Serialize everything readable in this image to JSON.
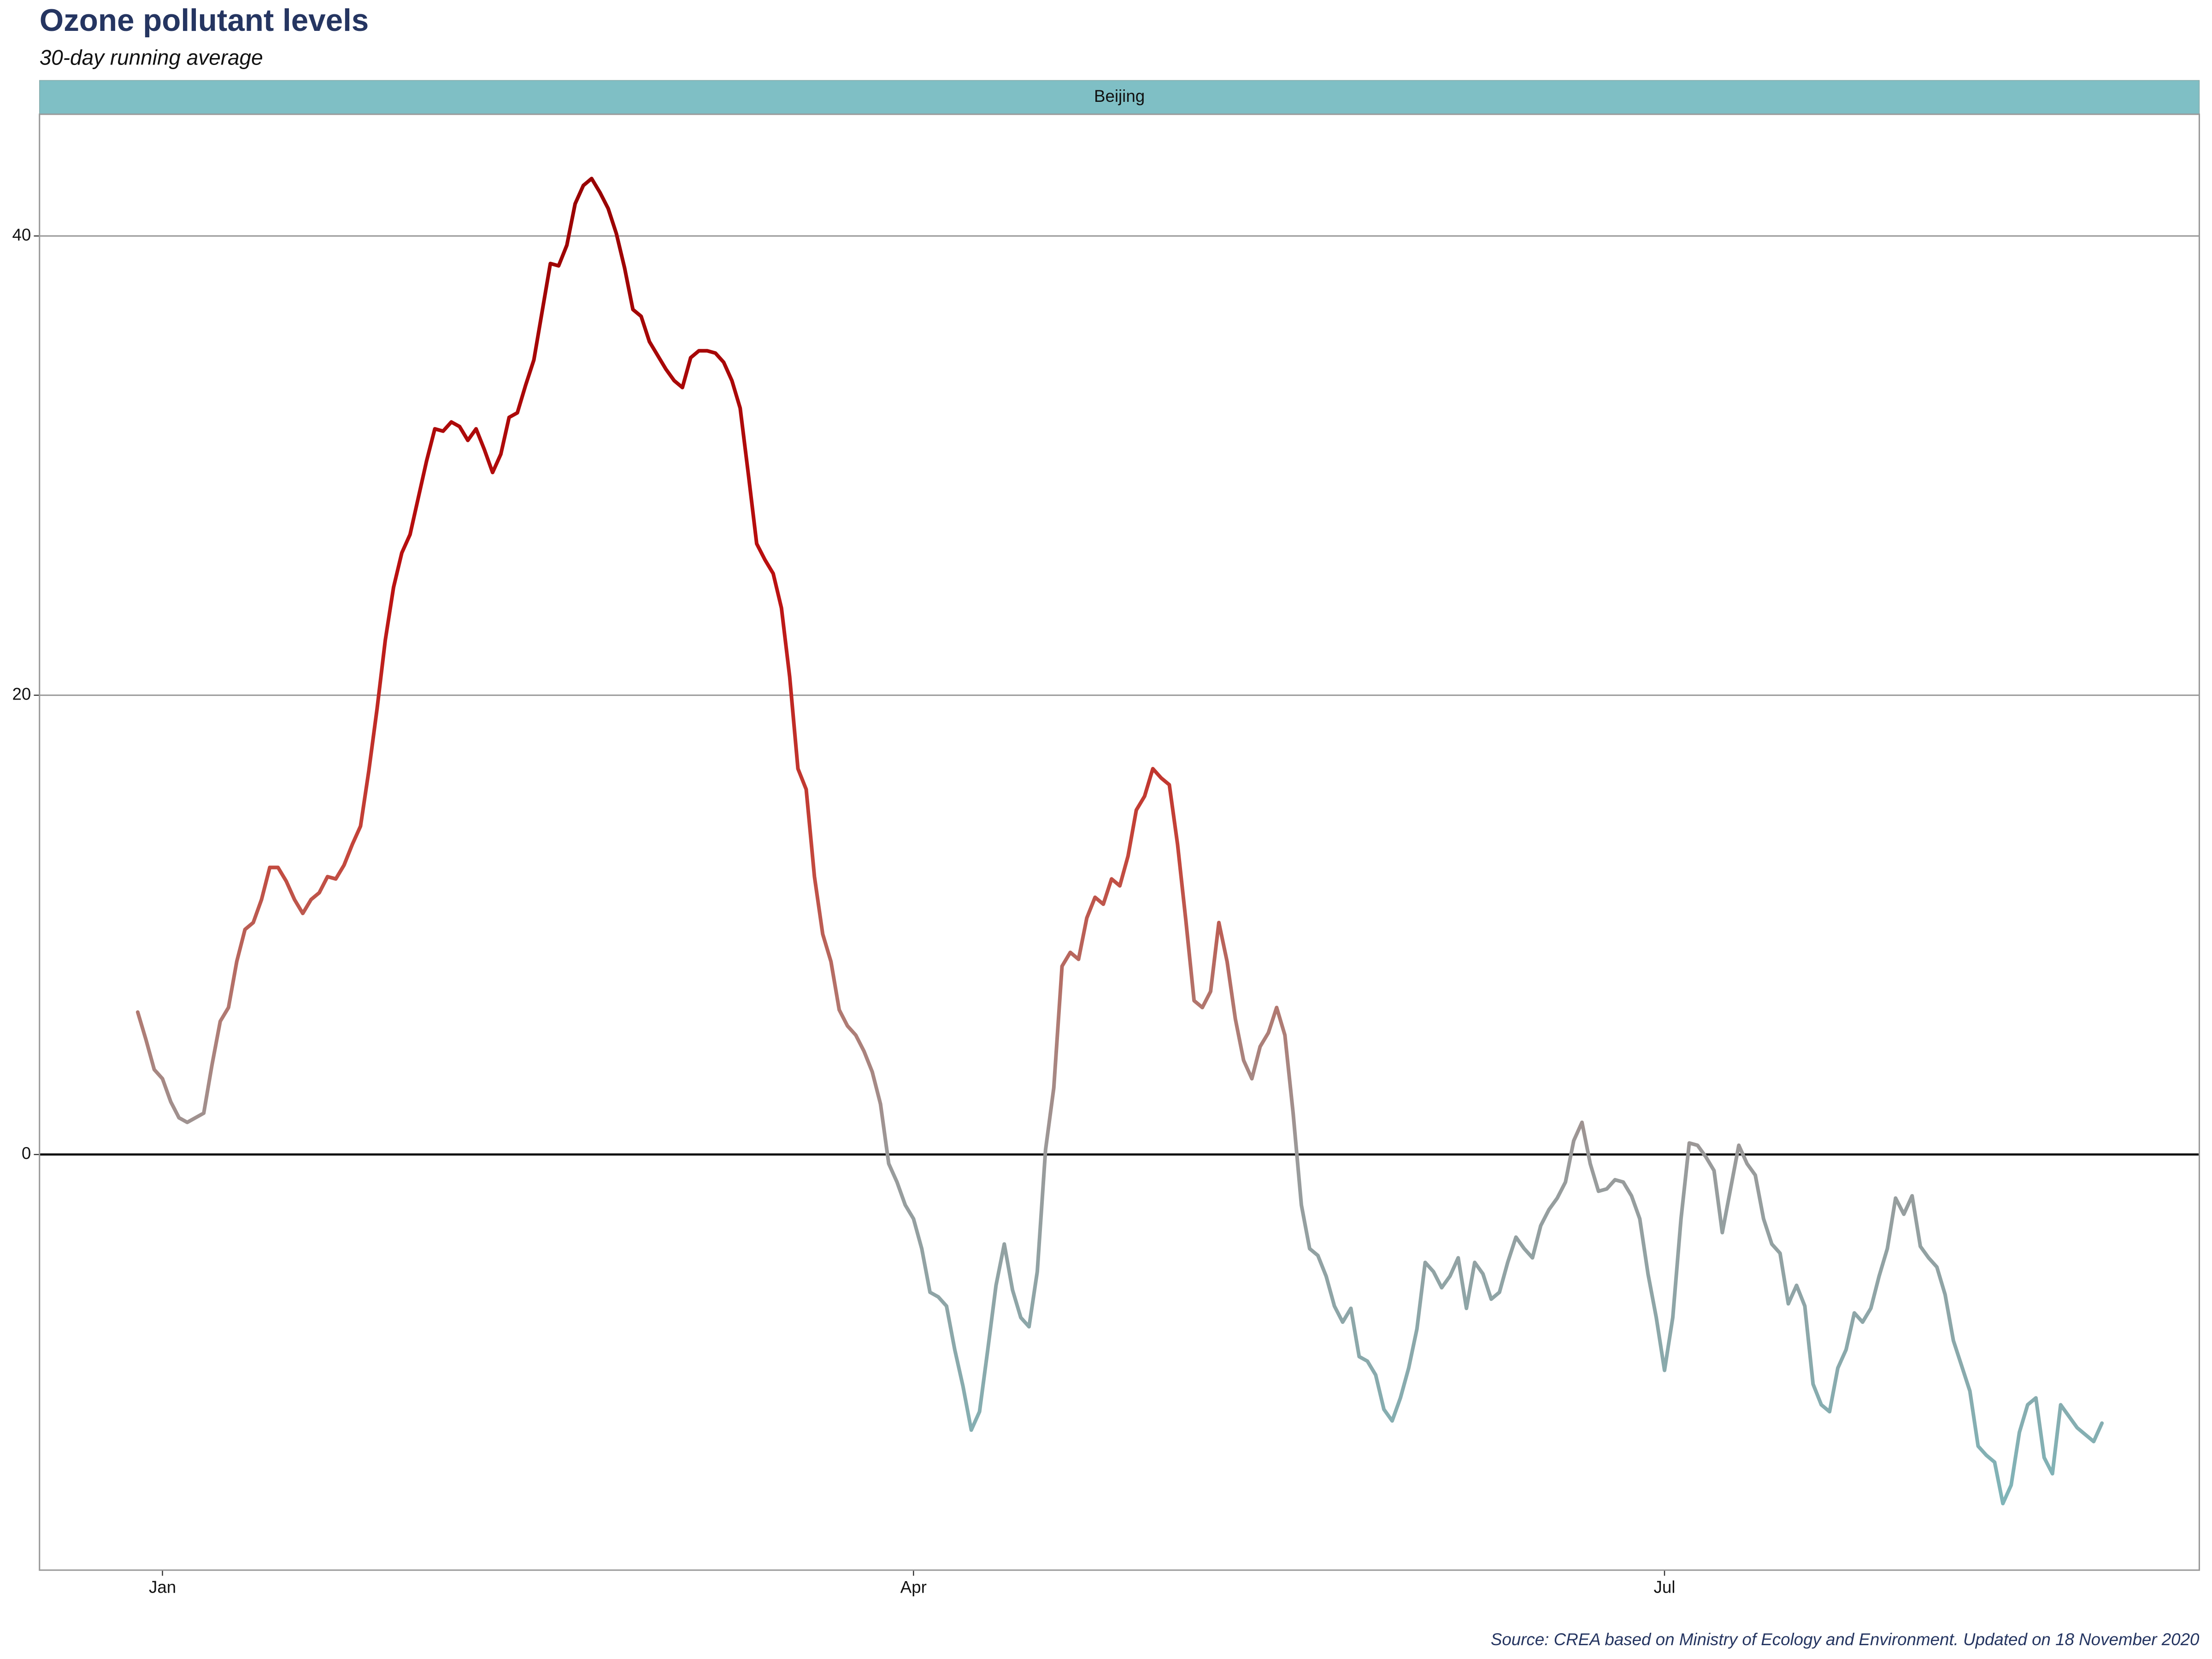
{
  "chart_data": {
    "type": "line",
    "title": "Ozone pollutant levels",
    "subtitle": "30-day running average",
    "panel_label": "Beijing",
    "source": "Source: CREA based on Ministry of Ecology and Environment. Updated on 18 November 2020",
    "x": [
      -3,
      -2,
      -1,
      0,
      1,
      2,
      3,
      4,
      5,
      6,
      7,
      8,
      9,
      10,
      11,
      12,
      13,
      14,
      15,
      16,
      17,
      18,
      19,
      20,
      21,
      22,
      23,
      24,
      25,
      26,
      27,
      28,
      29,
      30,
      31,
      32,
      33,
      34,
      35,
      36,
      37,
      38,
      39,
      40,
      41,
      42,
      43,
      44,
      45,
      46,
      47,
      48,
      49,
      50,
      51,
      52,
      53,
      54,
      55,
      56,
      57,
      58,
      59,
      60,
      61,
      62,
      63,
      64,
      65,
      66,
      67,
      68,
      69,
      70,
      71,
      72,
      73,
      74,
      75,
      76,
      77,
      78,
      79,
      80,
      81,
      82,
      83,
      84,
      85,
      86,
      87,
      88,
      89,
      90,
      91,
      92,
      93,
      94,
      95,
      96,
      97,
      98,
      99,
      100,
      101,
      102,
      103,
      104,
      105,
      106,
      107,
      108,
      109,
      110,
      111,
      112,
      113,
      114,
      115,
      116,
      117,
      118,
      119,
      120,
      121,
      122,
      123,
      124,
      125,
      126,
      127,
      128,
      129,
      130,
      131,
      132,
      133,
      134,
      135,
      136,
      137,
      138,
      139,
      140,
      141,
      142,
      143,
      144,
      145,
      146,
      147,
      148,
      149,
      150,
      151,
      152,
      153,
      154,
      155,
      156,
      157,
      158,
      159,
      160,
      161,
      162,
      163,
      164,
      165,
      166,
      167,
      168,
      169,
      170,
      171,
      172,
      173,
      174,
      175,
      176,
      177,
      178,
      179,
      180,
      181,
      182,
      183,
      184,
      185,
      186,
      187,
      188,
      189,
      190,
      191,
      192,
      193,
      194,
      195,
      196,
      197,
      198,
      199,
      200,
      201,
      202,
      203,
      204,
      205,
      206,
      207,
      208,
      209,
      210,
      211,
      212,
      213,
      214,
      215,
      216,
      217,
      218,
      219,
      220,
      221,
      222,
      223,
      224,
      225,
      226,
      227,
      228,
      229,
      230,
      231,
      232,
      233,
      234,
      235
    ],
    "values": [
      6.2,
      5.0,
      3.7,
      3.3,
      2.3,
      1.6,
      1.4,
      1.6,
      1.8,
      3.9,
      5.8,
      6.4,
      8.4,
      9.8,
      10.1,
      11.1,
      12.5,
      12.5,
      11.9,
      11.1,
      10.5,
      11.1,
      11.4,
      12.1,
      12.0,
      12.6,
      13.5,
      14.3,
      16.7,
      19.4,
      22.4,
      24.7,
      26.2,
      27.0,
      28.6,
      30.2,
      31.6,
      31.5,
      31.9,
      31.7,
      31.1,
      31.6,
      30.7,
      29.7,
      30.5,
      32.1,
      32.3,
      33.5,
      34.6,
      36.7,
      38.8,
      38.7,
      39.6,
      41.4,
      42.2,
      42.5,
      41.9,
      41.2,
      40.1,
      38.6,
      36.8,
      36.5,
      35.4,
      34.8,
      34.2,
      33.7,
      33.4,
      34.7,
      35.0,
      35.0,
      34.9,
      34.5,
      33.7,
      32.5,
      29.6,
      26.6,
      25.9,
      25.3,
      23.8,
      20.8,
      16.8,
      15.9,
      12.1,
      9.6,
      8.4,
      6.3,
      5.6,
      5.2,
      4.5,
      3.6,
      2.2,
      -0.4,
      -1.2,
      -2.2,
      -2.8,
      -4.1,
      -6.0,
      -6.2,
      -6.6,
      -8.5,
      -10.1,
      -12.0,
      -11.2,
      -8.5,
      -5.7,
      -3.9,
      -5.9,
      -7.1,
      -7.5,
      -5.1,
      0.2,
      2.9,
      8.2,
      8.8,
      8.5,
      10.3,
      11.2,
      10.9,
      12.0,
      11.7,
      13.0,
      15.0,
      15.6,
      16.8,
      16.4,
      16.1,
      13.5,
      10.2,
      6.7,
      6.4,
      7.1,
      10.1,
      8.4,
      5.9,
      4.1,
      3.3,
      4.7,
      5.3,
      6.4,
      5.2,
      1.8,
      -2.2,
      -4.1,
      -4.4,
      -5.3,
      -6.6,
      -7.3,
      -6.7,
      -8.8,
      -9.0,
      -9.6,
      -11.1,
      -11.6,
      -10.6,
      -9.3,
      -7.6,
      -4.7,
      -5.1,
      -5.8,
      -5.3,
      -4.5,
      -6.7,
      -4.7,
      -5.2,
      -6.3,
      -6.0,
      -4.7,
      -3.6,
      -4.1,
      -4.5,
      -3.1,
      -2.4,
      -1.9,
      -1.2,
      0.6,
      1.4,
      -0.4,
      -1.6,
      -1.5,
      -1.1,
      -1.2,
      -1.8,
      -2.8,
      -5.2,
      -7.1,
      -9.4,
      -7.1,
      -2.8,
      0.5,
      0.4,
      -0.1,
      -0.7,
      -3.4,
      -1.5,
      0.4,
      -0.4,
      -0.9,
      -2.8,
      -3.9,
      -4.3,
      -6.5,
      -5.7,
      -6.6,
      -10.0,
      -10.9,
      -11.2,
      -9.3,
      -8.5,
      -6.9,
      -7.3,
      -6.7,
      -5.3,
      -4.1,
      -1.9,
      -2.6,
      -1.8,
      -4.0,
      -4.5,
      -4.9,
      -6.1,
      -8.1,
      -9.2,
      -10.3,
      -12.7,
      -13.1,
      -13.4,
      -15.2,
      -14.4,
      -12.1,
      -10.9,
      -10.6,
      -13.2,
      -13.9,
      -10.9,
      -11.4,
      -11.9,
      -12.2,
      -12.5,
      -11.7
    ],
    "color_stops": [
      {
        "value": -15,
        "color": "#7fb4b8"
      },
      {
        "value": 0,
        "color": "#9a9a9a"
      },
      {
        "value": 6,
        "color": "#b07a72"
      },
      {
        "value": 13,
        "color": "#c4473c"
      },
      {
        "value": 25,
        "color": "#bb1010"
      },
      {
        "value": 42,
        "color": "#990000"
      }
    ],
    "xlim": [
      -14.9,
      246.8
    ],
    "xticks": [
      {
        "value": 0,
        "label": "Jan"
      },
      {
        "value": 91,
        "label": "Apr"
      },
      {
        "value": 182,
        "label": "Jul"
      }
    ],
    "ylim": [
      -18.1,
      45.3
    ],
    "yticks": [
      0,
      20,
      40
    ],
    "grid": true,
    "hline": 0,
    "strip_color": "#7fbfc5"
  }
}
